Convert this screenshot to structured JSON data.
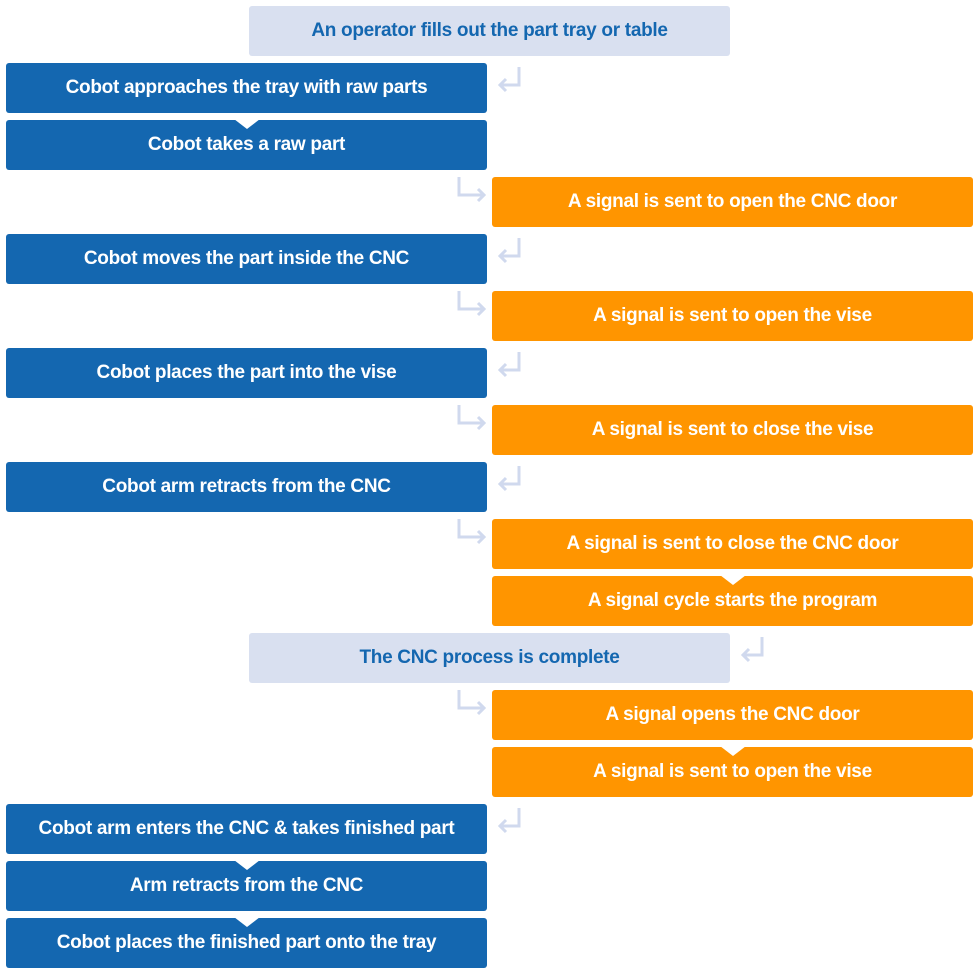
{
  "colors": {
    "blue": "#1467b0",
    "orange": "#ff9500",
    "light": "#d9e0f0",
    "connector": "#d0d9ee"
  },
  "steps": [
    {
      "text": "An operator fills out the part tray or table",
      "style": "light"
    },
    {
      "text": "Cobot approaches the tray with raw parts",
      "style": "blue"
    },
    {
      "text": "Cobot takes a raw part",
      "style": "blue"
    },
    {
      "text": "A signal is sent to open the CNC door",
      "style": "orange"
    },
    {
      "text": "Cobot moves the part inside the CNC",
      "style": "blue"
    },
    {
      "text": "A signal is sent to open the vise",
      "style": "orange"
    },
    {
      "text": "Cobot places the part into the vise",
      "style": "blue"
    },
    {
      "text": "A signal is sent to close the vise",
      "style": "orange"
    },
    {
      "text": "Cobot arm retracts from the CNC",
      "style": "blue"
    },
    {
      "text": "A signal is sent to close the CNC door",
      "style": "orange"
    },
    {
      "text": "A signal cycle starts the program",
      "style": "orange"
    },
    {
      "text": "The CNC process is complete",
      "style": "light"
    },
    {
      "text": "A signal opens the CNC door",
      "style": "orange"
    },
    {
      "text": "A signal is sent to open the vise",
      "style": "orange"
    },
    {
      "text": "Cobot arm enters the CNC & takes finished part",
      "style": "blue"
    },
    {
      "text": "Arm retracts from the CNC",
      "style": "blue"
    },
    {
      "text": "Cobot places the finished part onto the tray",
      "style": "blue"
    }
  ]
}
